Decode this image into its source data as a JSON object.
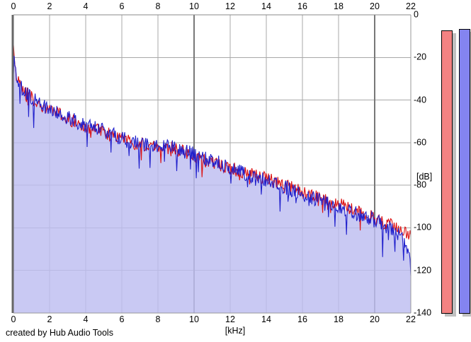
{
  "footer": {
    "credit": "created by Hub Audio Tools"
  },
  "axes": {
    "x": {
      "unit_label": "[kHz]",
      "min": 0,
      "max": 22,
      "ticks": [
        0,
        2,
        4,
        6,
        8,
        10,
        12,
        14,
        16,
        18,
        20,
        22
      ],
      "major_ticks": [
        10,
        20
      ]
    },
    "y": {
      "unit_label": "[dB]",
      "min": -140,
      "max": 0,
      "ticks": [
        0,
        -20,
        -40,
        -60,
        -80,
        -100,
        -120,
        -140
      ]
    }
  },
  "colors": {
    "grid_minor": "#a8a8a8",
    "grid_major": "#787878",
    "border_left": "#666666",
    "border_top": "#888888",
    "border_right": "#989898",
    "border_bottom": "#989898",
    "trace_red": "#dd1111",
    "trace_blue": "#2020cc",
    "fill_blue": "#bdbdf0",
    "meter_red": "#f38282",
    "meter_blue": "#8484f0",
    "meter_shadow": "#c0c0c0",
    "meter_outline": "#000000"
  },
  "chart_data": {
    "type": "line",
    "title": "",
    "xlabel": "[kHz]",
    "ylabel": "[dB]",
    "xlim": [
      0,
      22
    ],
    "ylim": [
      -140,
      0
    ],
    "grid": true,
    "step_khz": 0.04,
    "series": [
      {
        "name": "spectrum-red",
        "color": "#dd1111",
        "noise_db": 3.2,
        "dip_probability": 0.05,
        "dip_db": 9,
        "seed": 20160905,
        "envelope": [
          [
            0,
            -17
          ],
          [
            0.06,
            -21
          ],
          [
            0.12,
            -27
          ],
          [
            0.25,
            -31
          ],
          [
            0.4,
            -34
          ],
          [
            0.6,
            -36
          ],
          [
            0.85,
            -38
          ],
          [
            1.1,
            -39.5
          ],
          [
            1.5,
            -42
          ],
          [
            2,
            -44.5
          ],
          [
            2.6,
            -47
          ],
          [
            3.2,
            -49.5
          ],
          [
            3.9,
            -52
          ],
          [
            4.6,
            -54
          ],
          [
            5.3,
            -56
          ],
          [
            6,
            -58.5
          ],
          [
            6.8,
            -60.5
          ],
          [
            7.6,
            -61.5
          ],
          [
            8.4,
            -62
          ],
          [
            9.2,
            -63.5
          ],
          [
            10,
            -66
          ],
          [
            11,
            -69
          ],
          [
            12,
            -72
          ],
          [
            13,
            -74.5
          ],
          [
            14,
            -77
          ],
          [
            15,
            -80
          ],
          [
            16,
            -83
          ],
          [
            17,
            -86
          ],
          [
            18,
            -89
          ],
          [
            19,
            -92
          ],
          [
            20,
            -95.5
          ],
          [
            21,
            -99
          ],
          [
            21.6,
            -101.5
          ],
          [
            22,
            -104
          ]
        ]
      },
      {
        "name": "spectrum-blue",
        "color": "#2020cc",
        "fill": "#bdbdf0",
        "fill_opacity": 0.82,
        "noise_db": 3.6,
        "dip_probability": 0.08,
        "dip_db": 13,
        "seed": 77031,
        "envelope": [
          [
            0,
            -16
          ],
          [
            0.06,
            -20.5
          ],
          [
            0.12,
            -26.5
          ],
          [
            0.25,
            -30.5
          ],
          [
            0.4,
            -33.5
          ],
          [
            0.6,
            -35.5
          ],
          [
            0.85,
            -37.5
          ],
          [
            1.1,
            -39
          ],
          [
            1.5,
            -41.5
          ],
          [
            2,
            -44
          ],
          [
            2.6,
            -46.5
          ],
          [
            3.2,
            -49
          ],
          [
            3.9,
            -51.5
          ],
          [
            4.6,
            -53.5
          ],
          [
            5.3,
            -55.5
          ],
          [
            6,
            -58
          ],
          [
            6.8,
            -60
          ],
          [
            7.6,
            -61
          ],
          [
            8.4,
            -61.5
          ],
          [
            9.2,
            -63
          ],
          [
            10,
            -65.5
          ],
          [
            11,
            -68.5
          ],
          [
            12,
            -71.5
          ],
          [
            13,
            -75
          ],
          [
            14,
            -78
          ],
          [
            15,
            -81
          ],
          [
            16,
            -84.5
          ],
          [
            17,
            -87.5
          ],
          [
            18,
            -90.5
          ],
          [
            19,
            -93.5
          ],
          [
            20,
            -96.5
          ],
          [
            21,
            -100.5
          ],
          [
            21.6,
            -105
          ],
          [
            22,
            -113
          ]
        ]
      }
    ],
    "level_meters": [
      {
        "name": "meter-red",
        "value_db": -7.3,
        "color": "#f38282"
      },
      {
        "name": "meter-blue",
        "value_db": -6.6,
        "color": "#8484f0"
      }
    ]
  }
}
